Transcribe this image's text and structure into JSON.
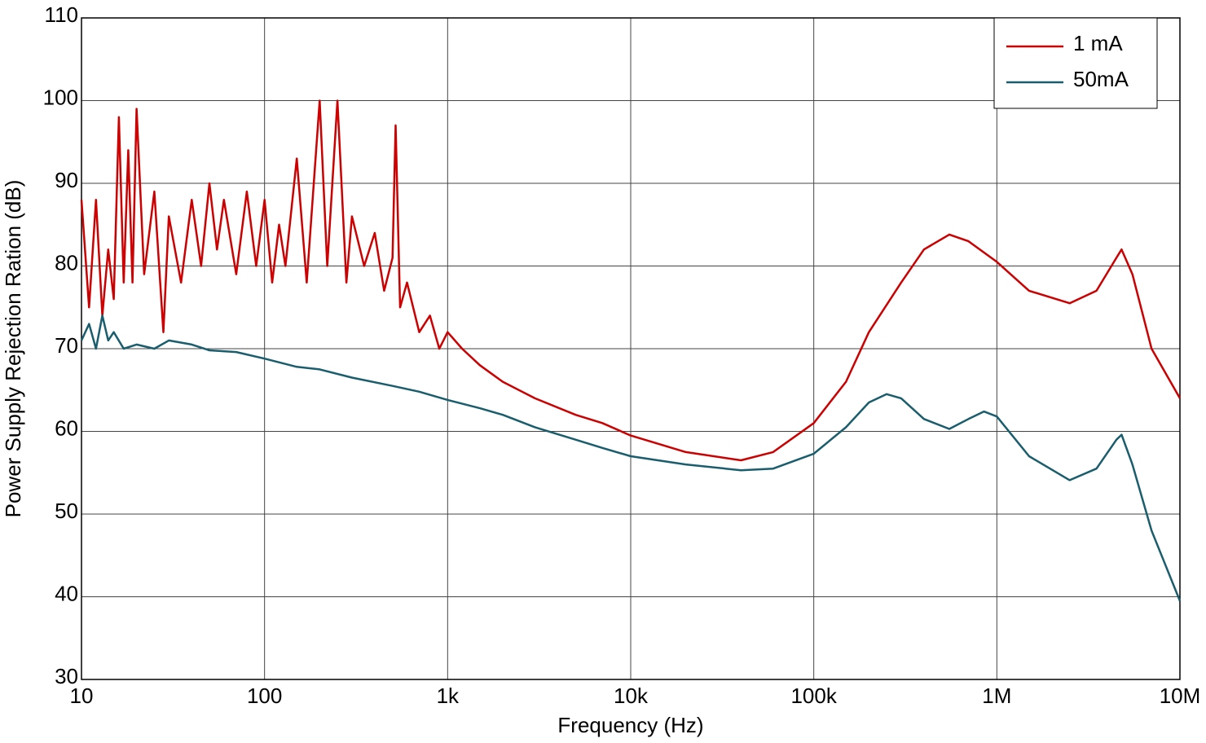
{
  "chart_data": {
    "type": "line",
    "xlabel": "Frequency (Hz)",
    "ylabel": "Power Supply Rejection Ration (dB)",
    "xscale": "log",
    "grid": true,
    "legend": "upper right",
    "xlim": [
      10,
      10000000
    ],
    "xticks": [
      10,
      100,
      {
        "value": 1000,
        "label": "1k"
      },
      {
        "value": 10000,
        "label": "10k"
      },
      {
        "value": 100000,
        "label": "100k"
      },
      {
        "value": 1000000,
        "label": "1M"
      },
      {
        "value": 10000000,
        "label": "10M"
      }
    ],
    "ylim": [
      30,
      110
    ],
    "yticks": [
      30,
      40,
      50,
      60,
      70,
      80,
      90,
      100,
      110
    ],
    "series": [
      {
        "name": "1 mA",
        "color": "#cc0000",
        "x": [
          10,
          11,
          12,
          13,
          14,
          15,
          16,
          17,
          18,
          19,
          20,
          22,
          25,
          28,
          30,
          35,
          40,
          45,
          50,
          55,
          60,
          70,
          80,
          90,
          100,
          110,
          120,
          130,
          150,
          170,
          200,
          220,
          250,
          280,
          300,
          350,
          400,
          450,
          500,
          520,
          550,
          600,
          700,
          800,
          900,
          1000,
          1200,
          1500,
          2000,
          3000,
          5000,
          7000,
          10000,
          20000,
          40000,
          60000,
          100000,
          150000,
          200000,
          300000,
          400000,
          550000,
          700000,
          1000000,
          1500000,
          2500000,
          3500000,
          4500000,
          4800000,
          5500000,
          7000000,
          10000000
        ],
        "values": [
          88,
          75,
          88,
          74,
          82,
          76,
          98,
          78,
          94,
          78,
          99,
          79,
          89,
          72,
          86,
          78,
          88,
          80,
          90,
          82,
          88,
          79,
          89,
          80,
          88,
          78,
          85,
          80,
          93,
          78,
          100,
          80,
          100,
          78,
          86,
          80,
          84,
          77,
          81,
          97,
          75,
          78,
          72,
          74,
          70,
          72,
          70,
          68,
          66,
          64,
          62,
          61,
          59.5,
          57.5,
          56.5,
          57.5,
          61,
          66,
          72,
          78,
          82,
          83.8,
          83,
          80.5,
          77,
          75.5,
          77,
          81,
          82,
          79,
          70,
          64
        ]
      },
      {
        "name": "50mA",
        "color": "#1a5e6e",
        "x": [
          10,
          11,
          12,
          13,
          14,
          15,
          17,
          20,
          25,
          30,
          40,
          50,
          70,
          100,
          150,
          200,
          300,
          500,
          700,
          1000,
          1500,
          2000,
          3000,
          5000,
          7000,
          10000,
          20000,
          40000,
          60000,
          100000,
          150000,
          200000,
          250000,
          300000,
          400000,
          550000,
          700000,
          850000,
          1000000,
          1500000,
          2500000,
          3500000,
          4500000,
          4800000,
          5500000,
          7000000,
          10000000
        ],
        "values": [
          71,
          73,
          70,
          74,
          71,
          72,
          70,
          70.5,
          70,
          71,
          70.5,
          69.8,
          69.6,
          68.8,
          67.8,
          67.5,
          66.5,
          65.5,
          64.8,
          63.8,
          62.8,
          62,
          60.5,
          59,
          58,
          57,
          56,
          55.3,
          55.5,
          57.3,
          60.5,
          63.5,
          64.5,
          64,
          61.5,
          60.3,
          61.5,
          62.4,
          61.8,
          57,
          54.1,
          55.5,
          59,
          59.6,
          56,
          48,
          39.5
        ]
      }
    ]
  }
}
